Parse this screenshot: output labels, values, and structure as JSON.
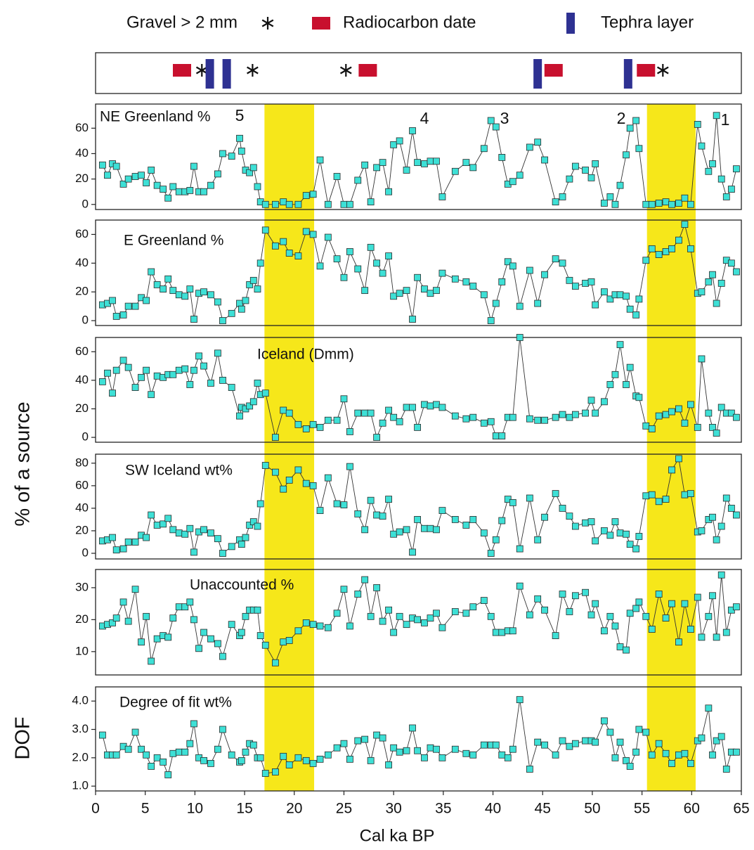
{
  "chart_data": {
    "type": "line",
    "marker_color": "#3ee0d6",
    "band_color": "#f6e71a",
    "xlabel": "Cal ka BP",
    "ylabels": [
      "% of a source",
      "DOF"
    ],
    "xlim": [
      0,
      65
    ],
    "xticks": [
      0,
      5,
      10,
      15,
      20,
      25,
      30,
      35,
      40,
      45,
      50,
      55,
      60,
      65
    ],
    "bands": [
      [
        17,
        22
      ],
      [
        55.5,
        60.4
      ]
    ],
    "events": [
      {
        "name": "Gravel > 2 mm",
        "color": "#111111",
        "x": [
          10.7,
          15.8,
          25.2,
          57.1
        ]
      },
      {
        "name": "Radiocarbon date",
        "color": "#c8102e",
        "x": [
          8.7,
          27.4,
          46.1,
          55.4
        ]
      },
      {
        "name": "Tephra layer",
        "color": "#2e3192",
        "x": [
          11.5,
          13.2,
          44.5,
          53.6
        ]
      }
    ],
    "x": [
      0.7,
      1.2,
      1.7,
      2.1,
      2.8,
      3.3,
      4.0,
      4.6,
      5.1,
      5.6,
      6.2,
      6.8,
      7.3,
      7.8,
      8.4,
      9.0,
      9.5,
      9.9,
      10.4,
      10.9,
      11.6,
      12.3,
      12.8,
      13.7,
      14.5,
      14.7,
      15.1,
      15.5,
      15.9,
      16.3,
      16.6,
      17.1,
      18.1,
      18.9,
      19.5,
      20.4,
      21.2,
      21.9,
      22.6,
      23.4,
      24.3,
      25.0,
      25.6,
      26.4,
      27.1,
      27.7,
      28.3,
      28.9,
      29.5,
      30.0,
      30.6,
      31.3,
      31.9,
      32.4,
      33.1,
      33.7,
      34.3,
      34.9,
      36.2,
      37.3,
      38.0,
      39.1,
      39.8,
      40.3,
      40.9,
      41.5,
      42.0,
      42.7,
      43.7,
      44.5,
      45.2,
      46.3,
      47.0,
      47.7,
      48.3,
      49.3,
      49.9,
      50.3,
      51.2,
      51.8,
      52.3,
      52.8,
      53.4,
      53.8,
      54.4,
      54.7,
      55.4,
      56.0,
      56.7,
      57.4,
      58.0,
      58.7,
      59.3,
      59.9,
      60.6,
      61.0,
      61.7,
      62.1,
      62.5,
      63.0,
      63.5,
      64.0,
      64.5
    ],
    "panels": [
      {
        "title": "NE Greenland %",
        "annotations": [
          "5",
          "4",
          "3",
          "2",
          "1"
        ],
        "ylim": [
          -4,
          79
        ],
        "yticks": [
          0,
          20,
          40,
          60
        ],
        "values": [
          31,
          23,
          32,
          30,
          16,
          20,
          22,
          23,
          17,
          27,
          15,
          12,
          5,
          14,
          10,
          10,
          11,
          30,
          10,
          10,
          15,
          24,
          40,
          38,
          52,
          42,
          27,
          25,
          29,
          14,
          2,
          0,
          0,
          2,
          0,
          0,
          7,
          8,
          35,
          0,
          22,
          0,
          0,
          19,
          31,
          2,
          29,
          33,
          10,
          47,
          50,
          27,
          58,
          33,
          32,
          34,
          34,
          6,
          26,
          33,
          29,
          44,
          66,
          61,
          37,
          16,
          18,
          23,
          45,
          49,
          35,
          2,
          6,
          20,
          30,
          27,
          21,
          32,
          1,
          6,
          0,
          15,
          39,
          60,
          66,
          44,
          0,
          0,
          1,
          2,
          0,
          1,
          5,
          0,
          63,
          46,
          26,
          32,
          70,
          20,
          6,
          12,
          28
        ]
      },
      {
        "title": "E Greenland %",
        "ylim": [
          -3.4,
          70
        ],
        "yticks": [
          0,
          20,
          40,
          60
        ],
        "values": [
          11,
          12,
          14,
          3,
          4,
          10,
          10,
          16,
          14,
          34,
          25,
          22,
          29,
          21,
          18,
          17,
          22,
          1,
          19,
          20,
          18,
          13,
          0,
          5,
          12,
          8,
          14,
          25,
          28,
          22,
          40,
          63,
          52,
          55,
          47,
          45,
          62,
          60,
          38,
          58,
          43,
          30,
          48,
          36,
          21,
          51,
          40,
          33,
          45,
          17,
          19,
          21,
          1,
          30,
          22,
          19,
          21,
          33,
          29,
          27,
          24,
          18,
          0,
          12,
          27,
          41,
          38,
          10,
          35,
          12,
          32,
          43,
          40,
          28,
          24,
          26,
          27,
          11,
          20,
          15,
          18,
          18,
          17,
          8,
          4,
          15,
          42,
          50,
          46,
          48,
          50,
          56,
          67,
          50,
          19,
          20,
          27,
          32,
          12,
          26,
          42,
          40,
          34
        ]
      },
      {
        "title": "Iceland (Dmm)",
        "ylim": [
          -3.4,
          70
        ],
        "yticks": [
          0,
          20,
          40,
          60
        ],
        "values": [
          39,
          45,
          31,
          47,
          54,
          49,
          35,
          42,
          47,
          30,
          43,
          42,
          44,
          44,
          47,
          48,
          37,
          47,
          57,
          50,
          38,
          59,
          40,
          35,
          15,
          21,
          20,
          22,
          25,
          38,
          30,
          31,
          0,
          19,
          17,
          9,
          6,
          9,
          7,
          12,
          12,
          27,
          4,
          17,
          17,
          17,
          0,
          10,
          19,
          14,
          11,
          21,
          21,
          7,
          23,
          22,
          23,
          21,
          15,
          13,
          14,
          10,
          11,
          1,
          1,
          14,
          14,
          70,
          13,
          12,
          12,
          14,
          16,
          14,
          16,
          17,
          26,
          17,
          25,
          37,
          44,
          65,
          37,
          49,
          29,
          28,
          8,
          6,
          15,
          16,
          18,
          20,
          10,
          23,
          7,
          55,
          17,
          7,
          3,
          21,
          17,
          17,
          14
        ]
      },
      {
        "title": "SW Iceland wt%",
        "ylim": [
          -5,
          88
        ],
        "yticks": [
          0,
          20,
          40,
          60,
          80
        ],
        "values": [
          11,
          12,
          14,
          3,
          4,
          10,
          10,
          16,
          14,
          34,
          25,
          26,
          31,
          21,
          18,
          17,
          22,
          1,
          19,
          21,
          18,
          13,
          0,
          6,
          12,
          8,
          14,
          25,
          28,
          24,
          44,
          78,
          72,
          57,
          65,
          74,
          62,
          60,
          38,
          67,
          44,
          43,
          77,
          35,
          21,
          47,
          34,
          33,
          48,
          17,
          19,
          21,
          1,
          30,
          22,
          22,
          21,
          38,
          30,
          25,
          30,
          18,
          0,
          12,
          29,
          48,
          45,
          4,
          49,
          12,
          32,
          53,
          40,
          33,
          24,
          27,
          28,
          11,
          20,
          16,
          28,
          18,
          17,
          8,
          4,
          15,
          51,
          52,
          46,
          48,
          74,
          84,
          52,
          53,
          19,
          20,
          30,
          32,
          12,
          24,
          49,
          40,
          34
        ]
      },
      {
        "title": "Unaccounted %",
        "ylim": [
          2.7,
          35.7
        ],
        "yticks": [
          10,
          20,
          30
        ],
        "values": [
          18,
          18.5,
          19,
          20.5,
          25.5,
          19.5,
          29.5,
          13,
          21,
          7,
          14,
          15,
          14.5,
          20.5,
          24,
          24,
          25.5,
          20,
          11,
          16,
          14,
          12.5,
          8.5,
          18.5,
          15,
          16,
          21,
          23,
          23,
          23,
          15,
          12,
          6.5,
          13,
          13.5,
          16.5,
          19,
          18.5,
          18,
          17.5,
          22,
          29.5,
          18,
          28,
          32.5,
          21,
          30,
          19.5,
          23,
          16,
          21,
          18.5,
          20.5,
          20,
          19,
          20.5,
          22,
          17.5,
          22.5,
          22,
          24,
          26,
          21,
          16,
          16,
          16.5,
          16.5,
          30.5,
          21.5,
          26.5,
          23,
          15,
          28,
          22.5,
          27.5,
          28.5,
          21.5,
          25,
          16.5,
          21,
          18,
          11.5,
          10.5,
          22,
          23.5,
          25.5,
          21,
          17,
          28,
          20.5,
          25,
          13,
          25,
          17,
          27,
          14.5,
          21,
          27.5,
          14.5,
          34,
          16,
          23,
          24
        ]
      },
      {
        "title": "Degree of fit wt%",
        "ylim": [
          0.83,
          4.5
        ],
        "yticks": [
          {
            "value": 1,
            "label": "1.0"
          },
          {
            "value": 2,
            "label": "2.0"
          },
          {
            "value": 3,
            "label": "3.0"
          },
          {
            "value": 4,
            "label": "4.0"
          }
        ],
        "values": [
          2.8,
          2.1,
          2.1,
          2.1,
          2.4,
          2.3,
          2.9,
          2.3,
          2.1,
          1.7,
          2.0,
          1.85,
          1.4,
          2.15,
          2.2,
          2.2,
          2.5,
          3.2,
          2.0,
          1.9,
          1.8,
          2.3,
          3.0,
          2.1,
          1.85,
          1.9,
          2.2,
          2.5,
          2.45,
          2.0,
          2.0,
          1.45,
          1.5,
          2.05,
          1.75,
          2.0,
          1.9,
          1.8,
          1.95,
          2.1,
          2.35,
          2.5,
          1.95,
          2.6,
          2.65,
          1.9,
          2.8,
          2.7,
          1.75,
          2.35,
          2.2,
          2.25,
          3.05,
          2.25,
          2.0,
          2.35,
          2.3,
          2.0,
          2.3,
          2.15,
          2.1,
          2.45,
          2.45,
          2.45,
          2.1,
          2.0,
          2.3,
          4.05,
          1.6,
          2.55,
          2.45,
          2.1,
          2.6,
          2.4,
          2.5,
          2.6,
          2.6,
          2.55,
          3.3,
          2.9,
          2.0,
          2.55,
          1.9,
          1.7,
          2.2,
          3.0,
          2.9,
          2.1,
          2.5,
          2.15,
          1.8,
          2.1,
          2.15,
          1.8,
          2.6,
          2.7,
          3.75,
          2.1,
          2.6,
          2.75,
          1.6,
          2.2,
          2.2
        ]
      }
    ]
  }
}
